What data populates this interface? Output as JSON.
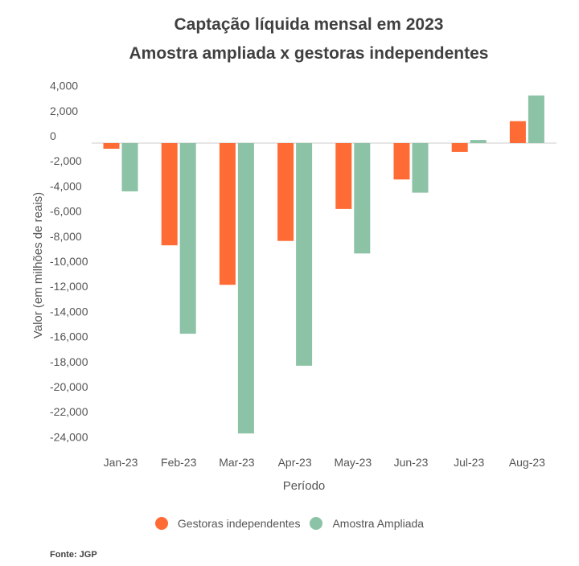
{
  "chart_data": {
    "type": "bar",
    "title": "Captação líquida mensal em 2023",
    "subtitle": "Amostra ampliada x gestoras independentes",
    "xlabel": "Período",
    "ylabel": "Valor (em milhões de reais)",
    "categories": [
      "Jan-23",
      "Feb-23",
      "Mar-23",
      "Apr-23",
      "May-23",
      "Jun-23",
      "Jul-23",
      "Aug-23"
    ],
    "series": [
      {
        "name": "Gestoras independentes",
        "color": "#FF6B35",
        "values": [
          -450,
          -8150,
          -11300,
          -7800,
          -5250,
          -2900,
          -700,
          1750
        ]
      },
      {
        "name": "Amostra Ampliada",
        "color": "#8CC2A6",
        "values": [
          -3850,
          -15200,
          -23150,
          -17750,
          -8800,
          -3950,
          250,
          3800
        ]
      }
    ],
    "yticks": [
      4000,
      2000,
      0,
      -2000,
      -4000,
      -6000,
      -8000,
      -10000,
      -12000,
      -14000,
      -16000,
      -18000,
      -20000,
      -22000,
      -24000
    ],
    "ytick_labels": [
      "4,000",
      "2,000",
      "0",
      "-2,000",
      "-4,000",
      "-6,000",
      "-8,000",
      "-10,000",
      "-12,000",
      "-14,000",
      "-16,000",
      "-18,000",
      "-20,000",
      "-22,000",
      "-24,000"
    ],
    "ylim": [
      -24000,
      4000
    ],
    "grid": false,
    "legend_position": "bottom",
    "source": "Fonte: JGP"
  }
}
